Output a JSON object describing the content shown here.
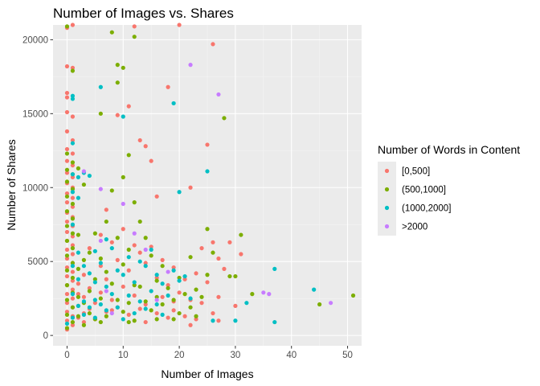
{
  "chart_data": {
    "type": "scatter",
    "title": "Number of Images vs. Shares",
    "xlabel": "Number of Images",
    "ylabel": "Number of Shares",
    "xlim": [
      -2.5,
      52.5
    ],
    "ylim": [
      -700,
      21000
    ],
    "x_ticks": [
      0,
      10,
      20,
      30,
      40,
      50
    ],
    "y_ticks": [
      0,
      5000,
      10000,
      15000,
      20000
    ],
    "x_tick_labels": [
      "0",
      "10",
      "20",
      "30",
      "40",
      "50"
    ],
    "y_tick_labels": [
      "0",
      "5000",
      "10000",
      "15000",
      "20000"
    ],
    "grid": true,
    "legend_position": "right",
    "legend_title": "Number of Words in Content",
    "series": [
      {
        "name": "[0,500]",
        "color": "#F8766D",
        "points": [
          [
            0,
            20800
          ],
          [
            1,
            21000
          ],
          [
            0,
            18200
          ],
          [
            1,
            18100
          ],
          [
            0,
            16400
          ],
          [
            0,
            16100
          ],
          [
            0,
            15100
          ],
          [
            1,
            14800
          ],
          [
            0,
            13800
          ],
          [
            1,
            13200
          ],
          [
            0,
            12600
          ],
          [
            1,
            12300
          ],
          [
            0,
            11800
          ],
          [
            1,
            11500
          ],
          [
            0,
            11000
          ],
          [
            1,
            10700
          ],
          [
            0,
            10300
          ],
          [
            1,
            10000
          ],
          [
            0,
            9600
          ],
          [
            1,
            9300
          ],
          [
            0,
            9000
          ],
          [
            1,
            8700
          ],
          [
            0,
            8300
          ],
          [
            1,
            8000
          ],
          [
            0,
            7700
          ],
          [
            1,
            7400
          ],
          [
            0,
            7000
          ],
          [
            1,
            6700
          ],
          [
            0,
            6400
          ],
          [
            1,
            6100
          ],
          [
            0,
            5800
          ],
          [
            1,
            5500
          ],
          [
            0,
            5200
          ],
          [
            1,
            4900
          ],
          [
            0,
            4600
          ],
          [
            1,
            4300
          ],
          [
            0,
            4000
          ],
          [
            1,
            3700
          ],
          [
            0,
            3400
          ],
          [
            1,
            3100
          ],
          [
            0,
            2800
          ],
          [
            1,
            2500
          ],
          [
            0,
            2200
          ],
          [
            1,
            1900
          ],
          [
            0,
            1600
          ],
          [
            1,
            1300
          ],
          [
            0,
            1000
          ],
          [
            1,
            700
          ],
          [
            0,
            400
          ],
          [
            2,
            3500
          ],
          [
            2,
            2800
          ],
          [
            2,
            2000
          ],
          [
            2,
            1200
          ],
          [
            3,
            4100
          ],
          [
            3,
            2600
          ],
          [
            3,
            1500
          ],
          [
            3,
            900
          ],
          [
            4,
            5900
          ],
          [
            4,
            3200
          ],
          [
            4,
            1800
          ],
          [
            5,
            2200
          ],
          [
            5,
            1100
          ],
          [
            6,
            6800
          ],
          [
            6,
            4700
          ],
          [
            6,
            2900
          ],
          [
            7,
            8500
          ],
          [
            7,
            3800
          ],
          [
            7,
            1600
          ],
          [
            8,
            6300
          ],
          [
            8,
            2400
          ],
          [
            9,
            14900
          ],
          [
            9,
            5100
          ],
          [
            9,
            1900
          ],
          [
            10,
            7200
          ],
          [
            10,
            3300
          ],
          [
            11,
            15500
          ],
          [
            11,
            4400
          ],
          [
            11,
            1400
          ],
          [
            12,
            20900
          ],
          [
            12,
            6100
          ],
          [
            12,
            2700
          ],
          [
            13,
            13200
          ],
          [
            13,
            5600
          ],
          [
            13,
            1800
          ],
          [
            14,
            12800
          ],
          [
            14,
            4900
          ],
          [
            14,
            2100
          ],
          [
            15,
            11800
          ],
          [
            15,
            6000
          ],
          [
            16,
            9400
          ],
          [
            16,
            3900
          ],
          [
            16,
            1500
          ],
          [
            17,
            5100
          ],
          [
            17,
            2600
          ],
          [
            18,
            16800
          ],
          [
            18,
            3400
          ],
          [
            18,
            1200
          ],
          [
            19,
            4600
          ],
          [
            19,
            1700
          ],
          [
            20,
            21000
          ],
          [
            20,
            2900
          ],
          [
            21,
            3800
          ],
          [
            21,
            1300
          ],
          [
            22,
            10000
          ],
          [
            22,
            2400
          ],
          [
            23,
            4200
          ],
          [
            23,
            1100
          ],
          [
            24,
            5900
          ],
          [
            24,
            2200
          ],
          [
            25,
            12900
          ],
          [
            25,
            3600
          ],
          [
            26,
            19700
          ],
          [
            26,
            6300
          ],
          [
            26,
            1500
          ],
          [
            27,
            5200
          ],
          [
            27,
            2600
          ],
          [
            28,
            4500
          ],
          [
            29,
            6300
          ],
          [
            30,
            2000
          ],
          [
            31,
            5500
          ],
          [
            8,
            1700
          ],
          [
            14,
            900
          ],
          [
            19,
            2300
          ],
          [
            22,
            700
          ],
          [
            27,
            1000
          ]
        ]
      },
      {
        "name": "(500,1000]",
        "color": "#7CAE00",
        "points": [
          [
            0,
            20900
          ],
          [
            1,
            17900
          ],
          [
            0,
            12300
          ],
          [
            1,
            11700
          ],
          [
            0,
            11200
          ],
          [
            1,
            10900
          ],
          [
            0,
            10400
          ],
          [
            1,
            9900
          ],
          [
            0,
            9400
          ],
          [
            1,
            8900
          ],
          [
            0,
            8400
          ],
          [
            1,
            7900
          ],
          [
            0,
            7400
          ],
          [
            1,
            6900
          ],
          [
            0,
            6400
          ],
          [
            1,
            5900
          ],
          [
            0,
            5400
          ],
          [
            1,
            4900
          ],
          [
            0,
            4400
          ],
          [
            1,
            3900
          ],
          [
            0,
            3400
          ],
          [
            1,
            2900
          ],
          [
            0,
            2400
          ],
          [
            1,
            1900
          ],
          [
            0,
            1400
          ],
          [
            1,
            900
          ],
          [
            0,
            500
          ],
          [
            2,
            11300
          ],
          [
            2,
            6800
          ],
          [
            2,
            4500
          ],
          [
            2,
            2600
          ],
          [
            2,
            1300
          ],
          [
            3,
            10200
          ],
          [
            3,
            5100
          ],
          [
            3,
            2200
          ],
          [
            3,
            700
          ],
          [
            4,
            5600
          ],
          [
            4,
            3000
          ],
          [
            4,
            1500
          ],
          [
            5,
            6900
          ],
          [
            5,
            3800
          ],
          [
            5,
            1100
          ],
          [
            6,
            15000
          ],
          [
            6,
            5200
          ],
          [
            6,
            2500
          ],
          [
            7,
            7700
          ],
          [
            7,
            4300
          ],
          [
            7,
            1300
          ],
          [
            8,
            20500
          ],
          [
            8,
            9800
          ],
          [
            8,
            3500
          ],
          [
            9,
            18300
          ],
          [
            9,
            17100
          ],
          [
            9,
            6600
          ],
          [
            9,
            2400
          ],
          [
            10,
            18100
          ],
          [
            10,
            10700
          ],
          [
            10,
            4800
          ],
          [
            10,
            1600
          ],
          [
            11,
            12200
          ],
          [
            11,
            5800
          ],
          [
            11,
            2200
          ],
          [
            12,
            20200
          ],
          [
            12,
            9000
          ],
          [
            12,
            3400
          ],
          [
            12,
            1000
          ],
          [
            13,
            7700
          ],
          [
            13,
            3300
          ],
          [
            14,
            6600
          ],
          [
            14,
            2300
          ],
          [
            15,
            5400
          ],
          [
            15,
            1700
          ],
          [
            16,
            3700
          ],
          [
            16,
            1100
          ],
          [
            17,
            4700
          ],
          [
            17,
            2100
          ],
          [
            18,
            3200
          ],
          [
            19,
            2400
          ],
          [
            20,
            3900
          ],
          [
            20,
            1500
          ],
          [
            21,
            2800
          ],
          [
            22,
            5300
          ],
          [
            22,
            1900
          ],
          [
            23,
            3100
          ],
          [
            24,
            2600
          ],
          [
            25,
            7200
          ],
          [
            25,
            4100
          ],
          [
            26,
            5600
          ],
          [
            28,
            14700
          ],
          [
            29,
            4000
          ],
          [
            30,
            4000
          ],
          [
            31,
            6800
          ],
          [
            33,
            2800
          ],
          [
            45,
            2100
          ],
          [
            51,
            2700
          ],
          [
            6,
            900
          ],
          [
            11,
            900
          ],
          [
            16,
            2600
          ],
          [
            19,
            1100
          ],
          [
            23,
            1300
          ]
        ]
      },
      {
        "name": "(1000,2000]",
        "color": "#00BFC4",
        "points": [
          [
            1,
            16200
          ],
          [
            1,
            16000
          ],
          [
            1,
            13000
          ],
          [
            1,
            10900
          ],
          [
            2,
            10700
          ],
          [
            1,
            9700
          ],
          [
            2,
            9300
          ],
          [
            1,
            7500
          ],
          [
            2,
            5600
          ],
          [
            1,
            4700
          ],
          [
            2,
            3800
          ],
          [
            1,
            2800
          ],
          [
            2,
            2000
          ],
          [
            1,
            1200
          ],
          [
            0,
            800
          ],
          [
            3,
            11000
          ],
          [
            3,
            4700
          ],
          [
            3,
            2300
          ],
          [
            3,
            1400
          ],
          [
            4,
            10800
          ],
          [
            4,
            4200
          ],
          [
            4,
            1900
          ],
          [
            5,
            5700
          ],
          [
            5,
            3600
          ],
          [
            5,
            2400
          ],
          [
            5,
            1200
          ],
          [
            6,
            16800
          ],
          [
            6,
            4900
          ],
          [
            6,
            2100
          ],
          [
            7,
            6500
          ],
          [
            7,
            3300
          ],
          [
            7,
            1700
          ],
          [
            8,
            5900
          ],
          [
            8,
            2800
          ],
          [
            9,
            4400
          ],
          [
            9,
            1900
          ],
          [
            10,
            14800
          ],
          [
            10,
            4100
          ],
          [
            10,
            1100
          ],
          [
            11,
            5300
          ],
          [
            11,
            2700
          ],
          [
            12,
            3600
          ],
          [
            12,
            1500
          ],
          [
            13,
            5000
          ],
          [
            13,
            2300
          ],
          [
            14,
            4700
          ],
          [
            14,
            1800
          ],
          [
            15,
            5800
          ],
          [
            15,
            3000
          ],
          [
            16,
            4100
          ],
          [
            16,
            2100
          ],
          [
            17,
            3500
          ],
          [
            17,
            1400
          ],
          [
            18,
            2700
          ],
          [
            19,
            15700
          ],
          [
            19,
            4400
          ],
          [
            20,
            9700
          ],
          [
            20,
            3700
          ],
          [
            21,
            4000
          ],
          [
            22,
            2500
          ],
          [
            25,
            11100
          ],
          [
            26,
            1000
          ],
          [
            32,
            2200
          ],
          [
            37,
            4500
          ],
          [
            37,
            900
          ],
          [
            44,
            3100
          ],
          [
            30,
            1000
          ]
        ]
      },
      {
        "name": ">2000",
        "color": "#C77CFF",
        "points": [
          [
            3,
            11100
          ],
          [
            6,
            9900
          ],
          [
            6,
            6400
          ],
          [
            7,
            3000
          ],
          [
            8,
            1500
          ],
          [
            10,
            8900
          ],
          [
            12,
            6900
          ],
          [
            14,
            5800
          ],
          [
            16,
            2400
          ],
          [
            18,
            4300
          ],
          [
            22,
            18300
          ],
          [
            27,
            16300
          ],
          [
            35,
            2900
          ],
          [
            36,
            2800
          ],
          [
            47,
            2200
          ]
        ]
      }
    ]
  }
}
